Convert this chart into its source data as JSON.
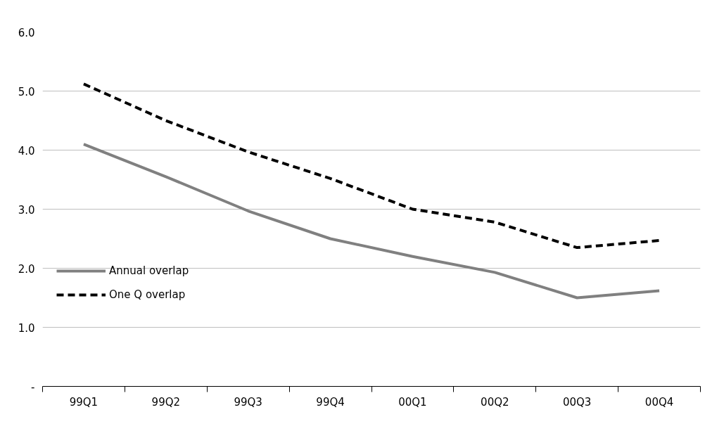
{
  "chart_data": {
    "type": "line",
    "categories": [
      "99Q1",
      "99Q2",
      "99Q3",
      "99Q4",
      "00Q1",
      "00Q2",
      "00Q3",
      "00Q4"
    ],
    "series": [
      {
        "name": "Annual overlap",
        "color": "#808080",
        "line_style": "solid",
        "values": [
          4.1,
          3.55,
          2.97,
          2.5,
          2.2,
          1.93,
          1.5,
          1.62
        ]
      },
      {
        "name": "One Q overlap",
        "color": "#000000",
        "line_style": "dashed",
        "values": [
          5.12,
          4.5,
          3.97,
          3.52,
          3.0,
          2.78,
          2.35,
          2.47
        ]
      }
    ],
    "ylim": [
      0,
      6
    ],
    "yticks": [
      {
        "value": 0,
        "label": "-"
      },
      {
        "value": 1,
        "label": "1.0"
      },
      {
        "value": 2,
        "label": "2.0"
      },
      {
        "value": 3,
        "label": "3.0"
      },
      {
        "value": 4,
        "label": "4.0"
      },
      {
        "value": 5,
        "label": "5.0"
      },
      {
        "value": 6,
        "label": "6.0"
      }
    ],
    "grid": "y",
    "legend": "bottom left",
    "marker": "none"
  }
}
